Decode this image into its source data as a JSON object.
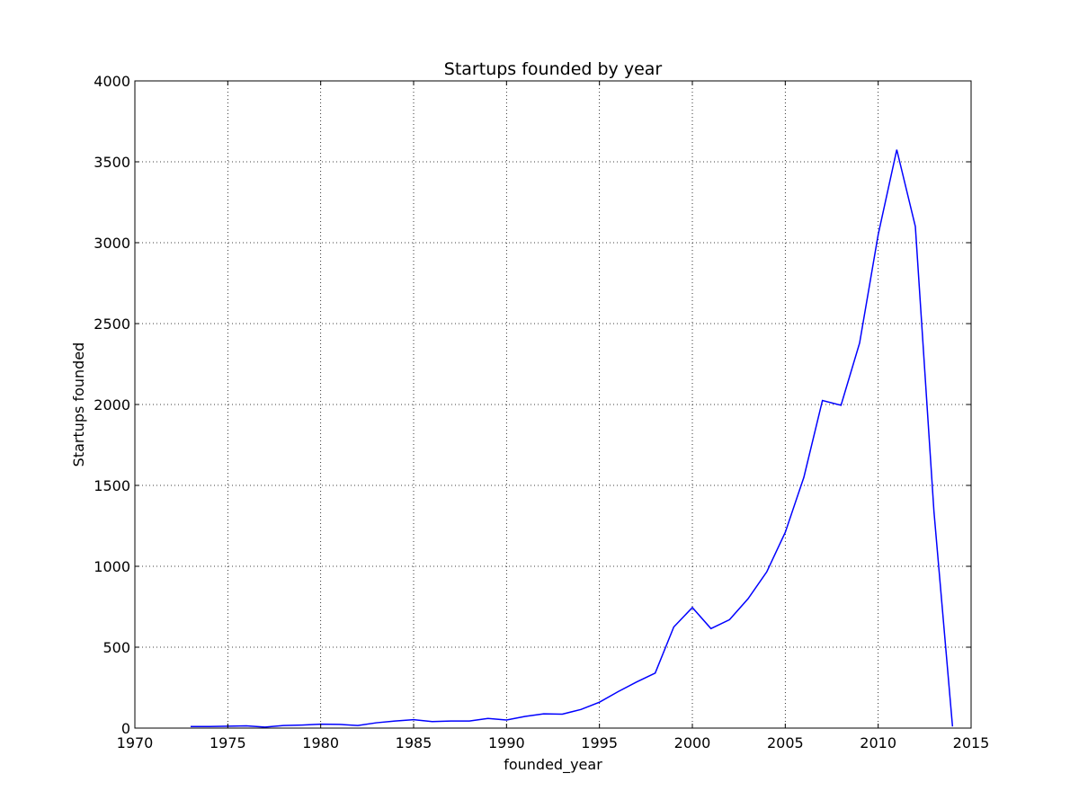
{
  "chart_data": {
    "type": "line",
    "title": "Startups founded by year",
    "xlabel": "founded_year",
    "ylabel": "Startups founded",
    "xlim": [
      1970,
      2015
    ],
    "ylim": [
      0,
      4000
    ],
    "xticks": [
      1970,
      1975,
      1980,
      1985,
      1990,
      1995,
      2000,
      2005,
      2010,
      2015
    ],
    "yticks": [
      0,
      500,
      1000,
      1500,
      2000,
      2500,
      3000,
      3500,
      4000
    ],
    "grid": true,
    "legend": "none",
    "line_color": "#0000ff",
    "series": [
      {
        "x": [
          1973,
          1974,
          1975,
          1976,
          1977,
          1978,
          1979,
          1980,
          1981,
          1982,
          1983,
          1984,
          1985,
          1986,
          1987,
          1988,
          1989,
          1990,
          1991,
          1992,
          1993,
          1994,
          1995,
          1996,
          1997,
          1998,
          1999,
          2000,
          2001,
          2002,
          2003,
          2004,
          2005,
          2006,
          2007,
          2008,
          2009,
          2010,
          2011,
          2012,
          2013,
          2014
        ],
        "values": [
          10,
          10,
          12,
          14,
          6,
          16,
          19,
          24,
          23,
          16,
          33,
          44,
          52,
          40,
          44,
          44,
          60,
          50,
          72,
          88,
          86,
          115,
          160,
          225,
          285,
          340,
          625,
          745,
          615,
          670,
          800,
          965,
          1210,
          1550,
          2025,
          1995,
          2380,
          3050,
          3575,
          3100,
          1340,
          10
        ]
      }
    ]
  }
}
